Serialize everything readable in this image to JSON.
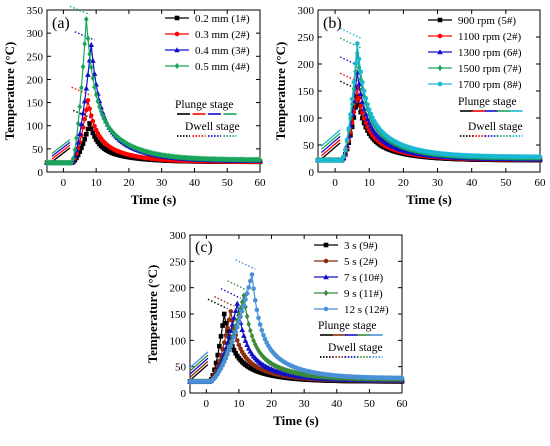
{
  "chart_data": [
    {
      "type": "line",
      "panel_label": "(a)",
      "xlabel": "Time (s)",
      "ylabel": "Temperature (°C)",
      "xlim": [
        -5,
        60
      ],
      "ylim": [
        0,
        350
      ],
      "xticks": [
        0,
        10,
        20,
        30,
        40,
        50,
        60
      ],
      "yticks": [
        0,
        50,
        100,
        150,
        200,
        250,
        300,
        350
      ],
      "plunge_label": "Plunge stage",
      "dwell_label": "Dwell stage",
      "series": [
        {
          "name": "0.2 mm (1#)",
          "color": "#000000",
          "marker": "square",
          "peak_time": 8.0,
          "peak": 105,
          "plunge_start": 2.5,
          "baseline": 20,
          "final": 22
        },
        {
          "name": "0.3 mm (2#)",
          "color": "#ff0000",
          "marker": "circle",
          "peak_time": 7.5,
          "peak": 155,
          "plunge_start": 2.5,
          "baseline": 20,
          "final": 22
        },
        {
          "name": "0.4 mm (3#)",
          "color": "#1010c8",
          "marker": "triangle",
          "peak_time": 8.5,
          "peak": 275,
          "plunge_start": 2.5,
          "baseline": 20,
          "final": 24
        },
        {
          "name": "0.5 mm (4#)",
          "color": "#1aa55a",
          "marker": "diamond",
          "peak_time": 7.0,
          "peak": 330,
          "plunge_start": 2.5,
          "baseline": 20,
          "final": 26
        }
      ]
    },
    {
      "type": "line",
      "panel_label": "(b)",
      "xlabel": "Time (s)",
      "ylabel": "Temperature (°C)",
      "xlim": [
        -5,
        60
      ],
      "ylim": [
        0,
        300
      ],
      "xticks": [
        0,
        10,
        20,
        30,
        40,
        50,
        60
      ],
      "yticks": [
        0,
        50,
        100,
        150,
        200,
        250,
        300
      ],
      "plunge_label": "Plunge stage",
      "dwell_label": "Dwell stage",
      "series": [
        {
          "name": "900 rpm (5#)",
          "color": "#000000",
          "marker": "square",
          "peak_time": 6.5,
          "peak": 140,
          "plunge_start": 2.0,
          "baseline": 22,
          "final": 22
        },
        {
          "name": "1100 rpm (2#)",
          "color": "#ff0000",
          "marker": "circle",
          "peak_time": 6.5,
          "peak": 155,
          "plunge_start": 2.0,
          "baseline": 22,
          "final": 23
        },
        {
          "name": "1300 rpm (6#)",
          "color": "#1010c8",
          "marker": "triangle",
          "peak_time": 6.5,
          "peak": 185,
          "plunge_start": 2.0,
          "baseline": 22,
          "final": 24
        },
        {
          "name": "1500 rpm (7#)",
          "color": "#1aa55a",
          "marker": "diamond",
          "peak_time": 6.5,
          "peak": 220,
          "plunge_start": 2.0,
          "baseline": 22,
          "final": 26
        },
        {
          "name": "1700 rpm (8#)",
          "color": "#1ab8d2",
          "marker": "hexagon",
          "peak_time": 6.5,
          "peak": 238,
          "plunge_start": 2.0,
          "baseline": 22,
          "final": 28
        }
      ]
    },
    {
      "type": "line",
      "panel_label": "(c)",
      "xlabel": "Time (s)",
      "ylabel": "Temperature (°C)",
      "xlim": [
        -5,
        60
      ],
      "ylim": [
        0,
        300
      ],
      "xticks": [
        0,
        10,
        20,
        30,
        40,
        50,
        60
      ],
      "yticks": [
        0,
        50,
        100,
        150,
        200,
        250,
        300
      ],
      "plunge_label": "Plunge stage",
      "dwell_label": "Dwell stage",
      "series": [
        {
          "name": "3 s (9#)",
          "color": "#000000",
          "marker": "square",
          "peak_time": 5.5,
          "peak": 150,
          "plunge_start": 1.0,
          "baseline": 22,
          "final": 22
        },
        {
          "name": "5 s (2#)",
          "color": "#8b2e10",
          "marker": "circle",
          "peak_time": 7.5,
          "peak": 155,
          "plunge_start": 1.0,
          "baseline": 22,
          "final": 23
        },
        {
          "name": "7 s (10#)",
          "color": "#1010c8",
          "marker": "triangle",
          "peak_time": 9.5,
          "peak": 170,
          "plunge_start": 1.0,
          "baseline": 22,
          "final": 24
        },
        {
          "name": "9 s (11#)",
          "color": "#3a8a3a",
          "marker": "diamond",
          "peak_time": 11.5,
          "peak": 185,
          "plunge_start": 1.0,
          "baseline": 22,
          "final": 26
        },
        {
          "name": "12 s (12#)",
          "color": "#4a90d8",
          "marker": "hexagon",
          "peak_time": 14.0,
          "peak": 225,
          "plunge_start": 1.0,
          "baseline": 22,
          "final": 28
        }
      ]
    }
  ]
}
